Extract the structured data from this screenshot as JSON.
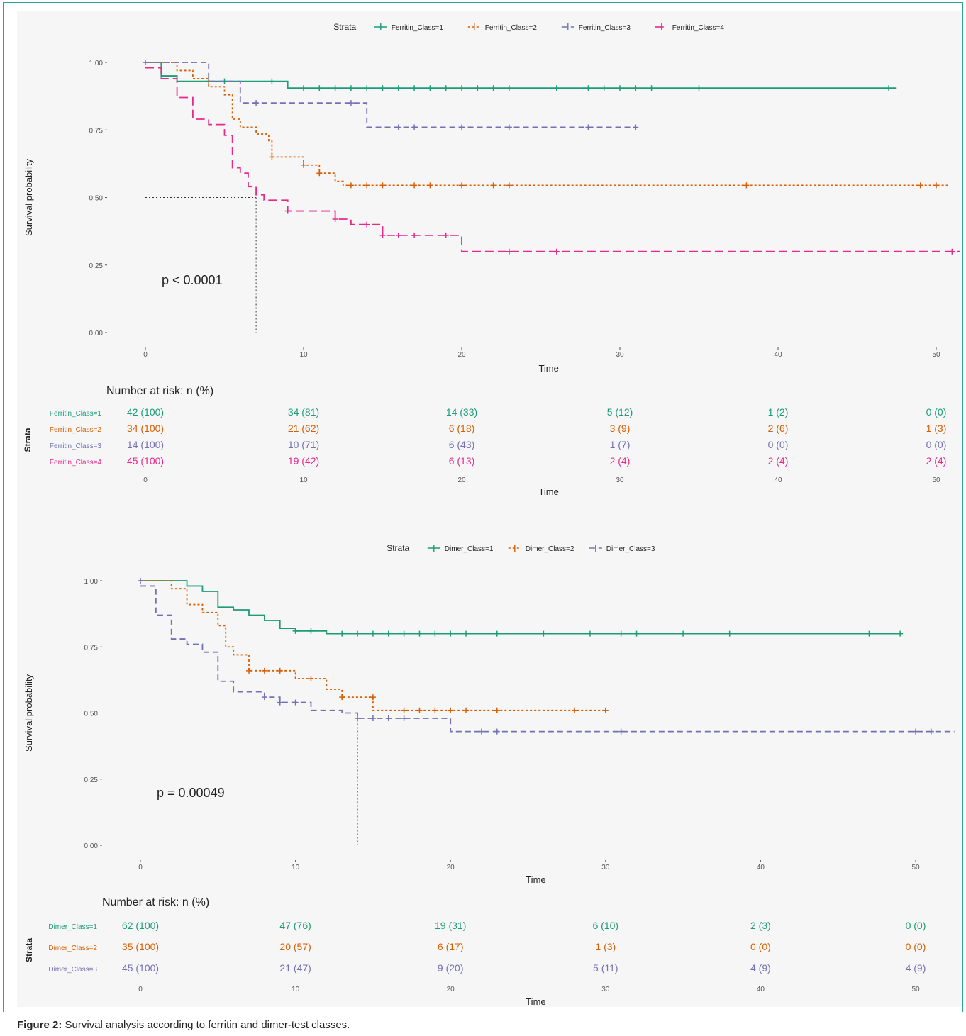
{
  "caption": {
    "label": "Figure 2:",
    "text": "Survival analysis according to ferritin and dimer-test classes."
  },
  "chart_data": [
    {
      "type": "line",
      "subtype": "kaplan-meier",
      "legend_title": "Strata",
      "legend_position": "top",
      "xlabel": "Time",
      "ylabel": "Survival probability",
      "xlim": [
        0,
        51.5
      ],
      "ylim": [
        0,
        1
      ],
      "x_ticks": [
        "0",
        "10",
        "20",
        "30",
        "40",
        "50"
      ],
      "y_ticks": [
        "0.00",
        "0.25",
        "0.50",
        "0.75",
        "1.00"
      ],
      "p_value": "p < 0.0001",
      "median_survival": [
        {
          "x": 7,
          "y": 0.5
        }
      ],
      "series": [
        {
          "name": "Ferritin_Class=1",
          "color": "#1a9e77",
          "dash": "solid",
          "steps": [
            [
              0,
              1.0
            ],
            [
              1,
              0.95
            ],
            [
              2,
              0.93
            ],
            [
              9,
              0.905
            ],
            [
              47.5,
              0.905
            ]
          ],
          "censors": [
            [
              4,
              0.93
            ],
            [
              5,
              0.93
            ],
            [
              8,
              0.93
            ],
            [
              10,
              0.905
            ],
            [
              11,
              0.905
            ],
            [
              12,
              0.905
            ],
            [
              13,
              0.905
            ],
            [
              14,
              0.905
            ],
            [
              15,
              0.905
            ],
            [
              16,
              0.905
            ],
            [
              17,
              0.905
            ],
            [
              18,
              0.905
            ],
            [
              19,
              0.905
            ],
            [
              20,
              0.905
            ],
            [
              21,
              0.905
            ],
            [
              22,
              0.905
            ],
            [
              23,
              0.905
            ],
            [
              26,
              0.905
            ],
            [
              28,
              0.905
            ],
            [
              29,
              0.905
            ],
            [
              30,
              0.905
            ],
            [
              31,
              0.905
            ],
            [
              32,
              0.905
            ],
            [
              35,
              0.905
            ],
            [
              47,
              0.905
            ]
          ]
        },
        {
          "name": "Ferritin_Class=2",
          "color": "#d95f02",
          "dash": "dotted",
          "steps": [
            [
              0,
              1.0
            ],
            [
              2,
              0.97
            ],
            [
              3,
              0.94
            ],
            [
              4,
              0.91
            ],
            [
              5,
              0.88
            ],
            [
              5.5,
              0.79
            ],
            [
              6,
              0.76
            ],
            [
              7,
              0.735
            ],
            [
              7.8,
              0.71
            ],
            [
              8,
              0.65
            ],
            [
              10,
              0.62
            ],
            [
              11,
              0.59
            ],
            [
              12,
              0.56
            ],
            [
              12.5,
              0.545
            ],
            [
              50.8,
              0.545
            ]
          ],
          "censors": [
            [
              8,
              0.65
            ],
            [
              10,
              0.62
            ],
            [
              11,
              0.59
            ],
            [
              13,
              0.545
            ],
            [
              14,
              0.545
            ],
            [
              15,
              0.545
            ],
            [
              17,
              0.545
            ],
            [
              18,
              0.545
            ],
            [
              20,
              0.545
            ],
            [
              22,
              0.545
            ],
            [
              23,
              0.545
            ],
            [
              38,
              0.545
            ],
            [
              49,
              0.545
            ],
            [
              50,
              0.545
            ]
          ]
        },
        {
          "name": "Ferritin_Class=3",
          "color": "#7570b3",
          "dash": "dashed",
          "steps": [
            [
              0,
              1.0
            ],
            [
              4,
              0.93
            ],
            [
              6,
              0.85
            ],
            [
              14,
              0.76
            ],
            [
              31,
              0.76
            ]
          ],
          "censors": [
            [
              0,
              1.0
            ],
            [
              7,
              0.85
            ],
            [
              13,
              0.85
            ],
            [
              16,
              0.76
            ],
            [
              17,
              0.76
            ],
            [
              20,
              0.76
            ],
            [
              23,
              0.76
            ],
            [
              28,
              0.76
            ],
            [
              31,
              0.76
            ]
          ]
        },
        {
          "name": "Ferritin_Class=4",
          "color": "#e7298a",
          "dash": "longdash",
          "steps": [
            [
              0,
              0.98
            ],
            [
              1,
              0.94
            ],
            [
              2,
              0.87
            ],
            [
              3,
              0.79
            ],
            [
              4,
              0.77
            ],
            [
              5,
              0.73
            ],
            [
              5.5,
              0.61
            ],
            [
              6,
              0.59
            ],
            [
              6.5,
              0.54
            ],
            [
              7,
              0.51
            ],
            [
              7.5,
              0.49
            ],
            [
              9,
              0.45
            ],
            [
              12,
              0.42
            ],
            [
              13,
              0.4
            ],
            [
              15,
              0.36
            ],
            [
              20,
              0.3
            ],
            [
              51.5,
              0.3
            ]
          ],
          "censors": [
            [
              9,
              0.45
            ],
            [
              12,
              0.42
            ],
            [
              14,
              0.4
            ],
            [
              15,
              0.36
            ],
            [
              16,
              0.36
            ],
            [
              17,
              0.36
            ],
            [
              19,
              0.36
            ],
            [
              23,
              0.3
            ],
            [
              26,
              0.3
            ],
            [
              51,
              0.3
            ]
          ]
        }
      ],
      "risk_table": {
        "title": "Number at risk: n (%)",
        "ylabel": "Strata",
        "xlabel": "Time",
        "rows": [
          {
            "name": "Ferritin_Class=1",
            "values": [
              "42 (100)",
              "34 (81)",
              "14 (33)",
              "5 (12)",
              "1 (2)",
              "0 (0)"
            ]
          },
          {
            "name": "Ferritin_Class=2",
            "values": [
              "34 (100)",
              "21 (62)",
              "6 (18)",
              "3 (9)",
              "2 (6)",
              "1 (3)"
            ]
          },
          {
            "name": "Ferritin_Class=3",
            "values": [
              "14 (100)",
              "10 (71)",
              "6 (43)",
              "1 (7)",
              "0 (0)",
              "0 (0)"
            ]
          },
          {
            "name": "Ferritin_Class=4",
            "values": [
              "45 (100)",
              "19 (42)",
              "6 (13)",
              "2 (4)",
              "2 (4)",
              "2 (4)"
            ]
          }
        ]
      }
    },
    {
      "type": "line",
      "subtype": "kaplan-meier",
      "legend_title": "Strata",
      "legend_position": "top",
      "xlabel": "Time",
      "ylabel": "Survival probability",
      "xlim": [
        0,
        52.5
      ],
      "ylim": [
        0,
        1
      ],
      "x_ticks": [
        "0",
        "10",
        "20",
        "30",
        "40",
        "50"
      ],
      "y_ticks": [
        "0.00",
        "0.25",
        "0.50",
        "0.75",
        "1.00"
      ],
      "p_value": "p = 0.00049",
      "median_survival": [
        {
          "x": 14,
          "y": 0.5
        }
      ],
      "series": [
        {
          "name": "Dimer_Class=1",
          "color": "#1a9e77",
          "dash": "solid",
          "steps": [
            [
              0,
              1.0
            ],
            [
              3,
              0.98
            ],
            [
              4,
              0.96
            ],
            [
              5,
              0.9
            ],
            [
              6,
              0.89
            ],
            [
              7,
              0.87
            ],
            [
              8,
              0.85
            ],
            [
              9,
              0.82
            ],
            [
              10,
              0.81
            ],
            [
              12,
              0.8
            ],
            [
              49,
              0.8
            ]
          ],
          "censors": [
            [
              10,
              0.81
            ],
            [
              11,
              0.81
            ],
            [
              13,
              0.8
            ],
            [
              14,
              0.8
            ],
            [
              15,
              0.8
            ],
            [
              16,
              0.8
            ],
            [
              17,
              0.8
            ],
            [
              18,
              0.8
            ],
            [
              19,
              0.8
            ],
            [
              20,
              0.8
            ],
            [
              21,
              0.8
            ],
            [
              23,
              0.8
            ],
            [
              26,
              0.8
            ],
            [
              29,
              0.8
            ],
            [
              31,
              0.8
            ],
            [
              32,
              0.8
            ],
            [
              35,
              0.8
            ],
            [
              38,
              0.8
            ],
            [
              47,
              0.8
            ],
            [
              49,
              0.8
            ]
          ]
        },
        {
          "name": "Dimer_Class=2",
          "color": "#d95f02",
          "dash": "dotted",
          "steps": [
            [
              0,
              1.0
            ],
            [
              2,
              0.97
            ],
            [
              3,
              0.91
            ],
            [
              4,
              0.88
            ],
            [
              5,
              0.83
            ],
            [
              5.5,
              0.75
            ],
            [
              6,
              0.72
            ],
            [
              7,
              0.66
            ],
            [
              10,
              0.63
            ],
            [
              12,
              0.59
            ],
            [
              13,
              0.56
            ],
            [
              15,
              0.51
            ],
            [
              30,
              0.51
            ]
          ],
          "censors": [
            [
              7,
              0.66
            ],
            [
              8,
              0.66
            ],
            [
              9,
              0.66
            ],
            [
              11,
              0.63
            ],
            [
              13,
              0.56
            ],
            [
              15,
              0.56
            ],
            [
              17,
              0.51
            ],
            [
              18,
              0.51
            ],
            [
              19,
              0.51
            ],
            [
              20,
              0.51
            ],
            [
              21,
              0.51
            ],
            [
              23,
              0.51
            ],
            [
              28,
              0.51
            ],
            [
              30,
              0.51
            ]
          ]
        },
        {
          "name": "Dimer_Class=3",
          "color": "#7570b3",
          "dash": "dashed",
          "steps": [
            [
              0,
              0.98
            ],
            [
              1,
              0.87
            ],
            [
              2,
              0.78
            ],
            [
              3,
              0.76
            ],
            [
              4,
              0.73
            ],
            [
              5,
              0.62
            ],
            [
              6,
              0.58
            ],
            [
              8,
              0.56
            ],
            [
              9,
              0.54
            ],
            [
              11,
              0.51
            ],
            [
              13,
              0.5
            ],
            [
              14,
              0.48
            ],
            [
              20,
              0.43
            ],
            [
              52.5,
              0.43
            ]
          ],
          "censors": [
            [
              0,
              1.0
            ],
            [
              8,
              0.56
            ],
            [
              9,
              0.54
            ],
            [
              10,
              0.54
            ],
            [
              14,
              0.48
            ],
            [
              15,
              0.48
            ],
            [
              16,
              0.48
            ],
            [
              17,
              0.48
            ],
            [
              22,
              0.43
            ],
            [
              23,
              0.43
            ],
            [
              31,
              0.43
            ],
            [
              50,
              0.43
            ],
            [
              51,
              0.43
            ]
          ]
        }
      ],
      "risk_table": {
        "title": "Number at risk: n (%)",
        "ylabel": "Strata",
        "xlabel": "Time",
        "rows": [
          {
            "name": "Dimer_Class=1",
            "values": [
              "62 (100)",
              "47 (76)",
              "19 (31)",
              "6 (10)",
              "2 (3)",
              "0 (0)"
            ]
          },
          {
            "name": "Dimer_Class=2",
            "values": [
              "35 (100)",
              "20 (57)",
              "6 (17)",
              "1 (3)",
              "0 (0)",
              "0 (0)"
            ]
          },
          {
            "name": "Dimer_Class=3",
            "values": [
              "45 (100)",
              "21 (47)",
              "9 (20)",
              "5 (11)",
              "4 (9)",
              "4 (9)"
            ]
          }
        ]
      }
    }
  ]
}
